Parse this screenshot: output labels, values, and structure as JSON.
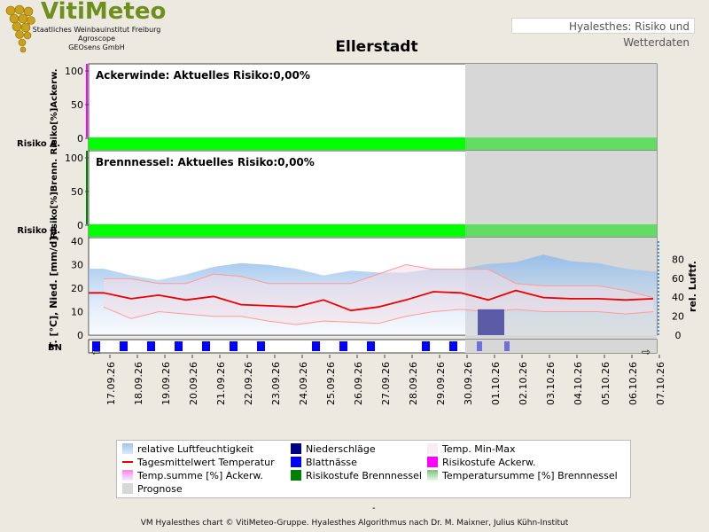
{
  "header": {
    "logo_title": "VitiMeteo",
    "org_lines": [
      "Staatliches Weinbauinstitut Freiburg",
      "Agroscope",
      "GEOsens GmbH"
    ],
    "tab_title": "Hyalesthes: Risiko und Wetterdaten"
  },
  "chart_title": "Ellerstadt",
  "colors": {
    "background": "#ece9e0",
    "risk_green": "#00ff00",
    "forecast_grey": "#d7d7d7",
    "temperature": "#ee0000",
    "blattnaesse": "#0000ff",
    "niederschlag": "#000080",
    "magenta": "#ff00ff",
    "dark_green": "#008000"
  },
  "chart_data": [
    {
      "type": "area",
      "title": "Ackerwinde: Aktuelles Risiko:0,00%",
      "ylabel": "Risiko[%]Ackerw.",
      "row_label": "Risiko A.",
      "ylim": [
        0,
        100
      ],
      "yticks": [
        "0",
        "50",
        "100"
      ],
      "values": [
        0,
        0,
        0,
        0,
        0,
        0,
        0,
        0,
        0,
        0,
        0,
        0,
        0,
        0,
        0,
        0,
        0,
        0,
        0,
        0,
        0
      ],
      "risk_level": "Risikostufe Ackerw. (green)"
    },
    {
      "type": "area",
      "title": "Brennnessel: Aktuelles Risiko:0,00%",
      "ylabel": "Risiko[%]Brenn.",
      "row_label": "Risiko B.",
      "ylim": [
        0,
        100
      ],
      "yticks": [
        "0",
        "50",
        "100"
      ],
      "values": [
        0,
        0,
        0,
        0,
        0,
        0,
        0,
        0,
        0,
        0,
        0,
        0,
        0,
        0,
        0,
        0,
        0,
        0,
        0,
        0,
        0
      ],
      "risk_level": "Risikostufe Brennnessel (green)"
    },
    {
      "type": "line",
      "ylabel": "T. [°C], Nied. [mm/d]",
      "ylabel2": "rel. Luftf.",
      "row_label": "BN",
      "ylim": [
        0,
        40
      ],
      "yticks": [
        "0",
        "10",
        "20",
        "30",
        "40"
      ],
      "ylim2": [
        0,
        100
      ],
      "yticks2": [
        "0",
        "20",
        "40",
        "60",
        "80"
      ],
      "x": [
        "17.09.26",
        "18.09.26",
        "19.09.26",
        "20.09.26",
        "21.09.26",
        "22.09.26",
        "23.09.26",
        "24.09.26",
        "25.09.26",
        "26.09.26",
        "27.09.26",
        "28.09.26",
        "29.09.26",
        "30.09.26",
        "01.10.26",
        "02.10.26",
        "03.10.26",
        "04.10.26",
        "05.10.26",
        "06.10.26",
        "07.10.26"
      ],
      "forecast_start": "30.09.26",
      "series": [
        {
          "name": "Tagesmittelwert Temperatur",
          "values": [
            18,
            15.5,
            17,
            15,
            16.5,
            13,
            12.5,
            12,
            15,
            10.5,
            12,
            15,
            18.5,
            18,
            15,
            19,
            16,
            15.5,
            15.5,
            15,
            15.5
          ]
        },
        {
          "name": "Temp. Min-Max",
          "min": [
            12,
            7,
            10,
            9,
            8,
            8,
            6,
            4.5,
            6,
            5.5,
            5,
            8,
            10,
            11,
            10,
            11,
            10,
            10,
            10,
            9,
            10
          ],
          "max": [
            24,
            24,
            22,
            22,
            26,
            25,
            22,
            22,
            22,
            22,
            26,
            30,
            28,
            28,
            28,
            22,
            21,
            21,
            21,
            19,
            16
          ]
        },
        {
          "name": "relative Luftfeuchtigkeit",
          "values": [
            70,
            63,
            58,
            64,
            72,
            76,
            74,
            70,
            63,
            68,
            66,
            66,
            70,
            70,
            75,
            77,
            85,
            78,
            76,
            70,
            67
          ]
        },
        {
          "name": "Niederschläge",
          "values": [
            0,
            0,
            0,
            0,
            0,
            0,
            0,
            0,
            0,
            0,
            0,
            0,
            0,
            0,
            11,
            0,
            0,
            0,
            0,
            0,
            0
          ]
        }
      ],
      "blattnaesse_days": [
        "17.09.26",
        "18.09.26",
        "19.09.26",
        "20.09.26",
        "21.09.26",
        "22.09.26",
        "23.09.26",
        "25.09.26",
        "26.09.26",
        "27.09.26",
        "29.09.26",
        "30.09.26",
        "01.10.26",
        "02.10.26"
      ]
    }
  ],
  "legend": {
    "items": [
      {
        "label": "relative Luftfeuchtigkeit",
        "swatch": "humidity"
      },
      {
        "label": "Niederschläge",
        "swatch": "precip"
      },
      {
        "label": "Temp. Min-Max",
        "swatch": "minmax"
      },
      {
        "label": "Tagesmittelwert Temperatur",
        "swatch": "templine"
      },
      {
        "label": "Blattnässe",
        "swatch": "leafwet"
      },
      {
        "label": "Risikostufe Ackerw.",
        "swatch": "magenta"
      },
      {
        "label": "Temp.summe [%] Ackerw.",
        "swatch": "tsum-a"
      },
      {
        "label": "Risikostufe Brennnessel",
        "swatch": "darkgreen"
      },
      {
        "label": "Temperatursumme [%] Brennnessel",
        "swatch": "tsum-b"
      },
      {
        "label": "Prognose",
        "swatch": "forecast"
      }
    ]
  },
  "footer": {
    "dash": "-",
    "text": "VM Hyalesthes chart © VitiMeteo-Gruppe. Hyalesthes Algorithmus nach Dr. M. Maixner, Julius Kühn-Institut"
  }
}
